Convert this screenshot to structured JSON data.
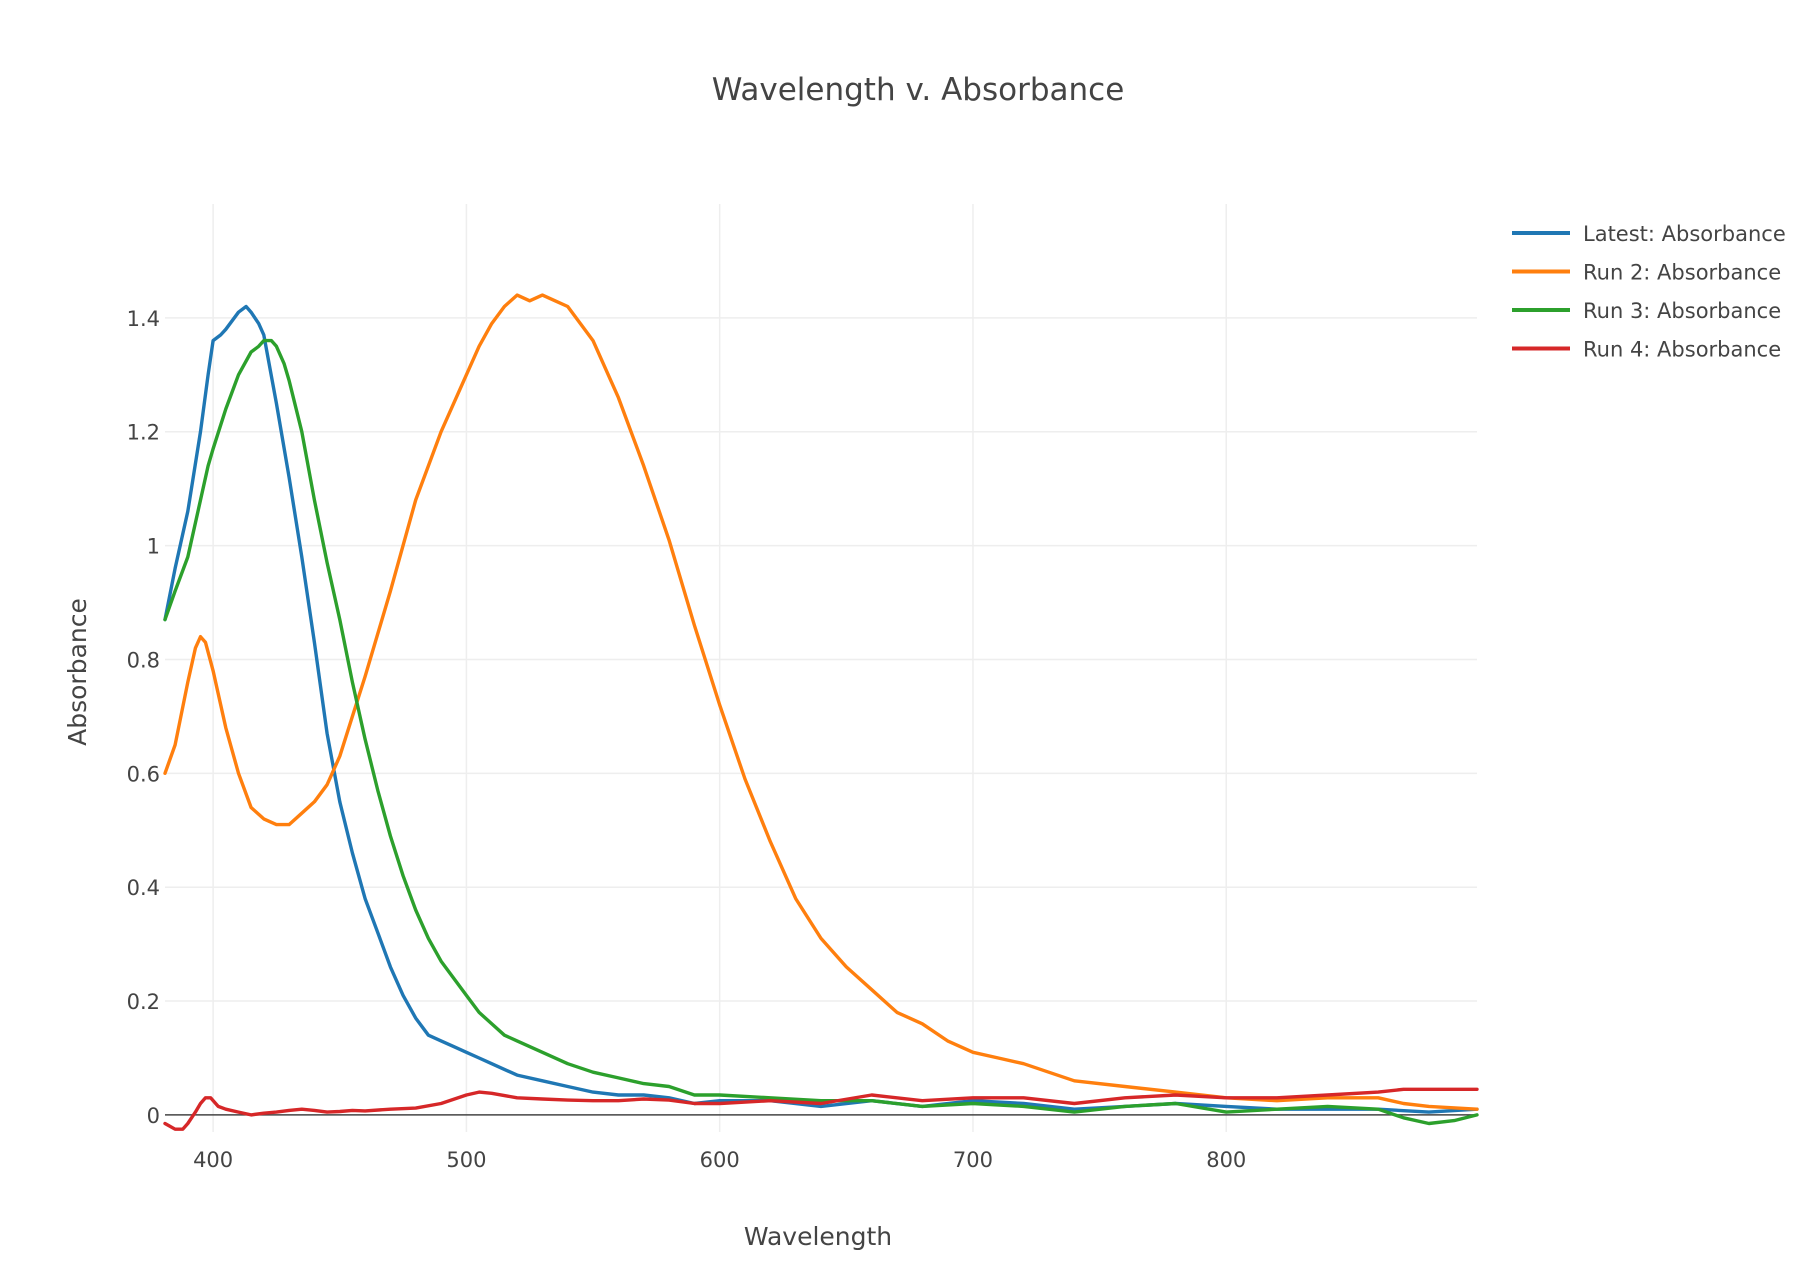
{
  "chart_data": {
    "type": "line",
    "title": "Wavelength v. Absorbance",
    "xlabel": "Wavelength",
    "ylabel": "Absorbance",
    "xlim": [
      381,
      899
    ],
    "ylim": [
      -0.03,
      1.6
    ],
    "xticks": [
      400,
      500,
      600,
      700,
      800
    ],
    "xtick_labels": [
      "400",
      "500",
      "600",
      "700",
      "800"
    ],
    "yticks": [
      0,
      0.2,
      0.4,
      0.6,
      0.8,
      1,
      1.2,
      1.4
    ],
    "ytick_labels": [
      "0",
      "0.2",
      "0.4",
      "0.6",
      "0.8",
      "1",
      "1.2",
      "1.4"
    ],
    "grid": true,
    "legend_position": "top-right",
    "series": [
      {
        "name": "Latest: Absorbance",
        "color": "#1f77b4",
        "x": [
          381,
          385,
          390,
          395,
          398,
          400,
          403,
          405,
          410,
          413,
          415,
          418,
          420,
          425,
          430,
          435,
          440,
          445,
          450,
          455,
          460,
          465,
          470,
          475,
          480,
          485,
          490,
          495,
          500,
          505,
          510,
          515,
          520,
          530,
          540,
          550,
          560,
          570,
          580,
          590,
          600,
          620,
          640,
          660,
          680,
          700,
          720,
          740,
          760,
          780,
          800,
          820,
          840,
          860,
          880,
          899
        ],
        "y": [
          0.87,
          0.96,
          1.06,
          1.2,
          1.3,
          1.36,
          1.37,
          1.38,
          1.41,
          1.42,
          1.41,
          1.39,
          1.37,
          1.25,
          1.12,
          0.98,
          0.83,
          0.67,
          0.55,
          0.46,
          0.38,
          0.32,
          0.26,
          0.21,
          0.17,
          0.14,
          0.13,
          0.12,
          0.11,
          0.1,
          0.09,
          0.08,
          0.07,
          0.06,
          0.05,
          0.04,
          0.035,
          0.035,
          0.03,
          0.02,
          0.025,
          0.025,
          0.015,
          0.025,
          0.015,
          0.025,
          0.02,
          0.01,
          0.015,
          0.02,
          0.015,
          0.01,
          0.01,
          0.01,
          0.005,
          0.01
        ]
      },
      {
        "name": "Run 2: Absorbance",
        "color": "#ff7f0e",
        "x": [
          381,
          385,
          390,
          393,
          395,
          397,
          400,
          405,
          410,
          415,
          420,
          425,
          430,
          435,
          440,
          445,
          450,
          455,
          460,
          470,
          480,
          490,
          500,
          505,
          510,
          515,
          520,
          525,
          530,
          535,
          540,
          545,
          550,
          560,
          570,
          580,
          590,
          600,
          610,
          620,
          630,
          640,
          650,
          660,
          670,
          680,
          690,
          700,
          710,
          720,
          740,
          760,
          780,
          800,
          820,
          840,
          860,
          870,
          880,
          899
        ],
        "y": [
          0.6,
          0.65,
          0.76,
          0.82,
          0.84,
          0.83,
          0.78,
          0.68,
          0.6,
          0.54,
          0.52,
          0.51,
          0.51,
          0.53,
          0.55,
          0.58,
          0.63,
          0.7,
          0.77,
          0.92,
          1.08,
          1.2,
          1.3,
          1.35,
          1.39,
          1.42,
          1.44,
          1.43,
          1.44,
          1.43,
          1.42,
          1.39,
          1.36,
          1.26,
          1.14,
          1.01,
          0.86,
          0.72,
          0.59,
          0.48,
          0.38,
          0.31,
          0.26,
          0.22,
          0.18,
          0.16,
          0.13,
          0.11,
          0.1,
          0.09,
          0.06,
          0.05,
          0.04,
          0.03,
          0.025,
          0.03,
          0.03,
          0.02,
          0.015,
          0.01
        ]
      },
      {
        "name": "Run 3: Absorbance",
        "color": "#2ca02c",
        "x": [
          381,
          385,
          390,
          395,
          398,
          400,
          405,
          410,
          415,
          418,
          420,
          423,
          425,
          428,
          430,
          435,
          440,
          445,
          450,
          455,
          460,
          465,
          470,
          475,
          480,
          485,
          490,
          495,
          500,
          505,
          510,
          515,
          520,
          530,
          540,
          550,
          560,
          570,
          580,
          590,
          600,
          620,
          640,
          660,
          680,
          700,
          720,
          740,
          760,
          780,
          800,
          820,
          840,
          860,
          870,
          880,
          890,
          899
        ],
        "y": [
          0.87,
          0.92,
          0.98,
          1.08,
          1.14,
          1.17,
          1.24,
          1.3,
          1.34,
          1.35,
          1.36,
          1.36,
          1.35,
          1.32,
          1.29,
          1.2,
          1.08,
          0.97,
          0.87,
          0.76,
          0.66,
          0.57,
          0.49,
          0.42,
          0.36,
          0.31,
          0.27,
          0.24,
          0.21,
          0.18,
          0.16,
          0.14,
          0.13,
          0.11,
          0.09,
          0.075,
          0.065,
          0.055,
          0.05,
          0.035,
          0.035,
          0.03,
          0.025,
          0.025,
          0.015,
          0.02,
          0.015,
          0.005,
          0.015,
          0.02,
          0.005,
          0.01,
          0.015,
          0.01,
          -0.005,
          -0.015,
          -0.01,
          0
        ]
      },
      {
        "name": "Run 4: Absorbance",
        "color": "#d62728",
        "x": [
          381,
          385,
          388,
          390,
          393,
          395,
          397,
          399,
          402,
          405,
          410,
          415,
          420,
          425,
          430,
          435,
          440,
          445,
          450,
          455,
          460,
          470,
          480,
          490,
          500,
          505,
          510,
          520,
          530,
          540,
          550,
          560,
          570,
          580,
          590,
          600,
          620,
          640,
          660,
          680,
          700,
          720,
          740,
          760,
          780,
          800,
          820,
          840,
          860,
          870,
          880,
          890,
          899
        ],
        "y": [
          -0.015,
          -0.025,
          -0.025,
          -0.015,
          0.005,
          0.02,
          0.03,
          0.03,
          0.015,
          0.01,
          0.005,
          0,
          0.003,
          0.005,
          0.008,
          0.01,
          0.008,
          0.005,
          0.006,
          0.008,
          0.007,
          0.01,
          0.012,
          0.02,
          0.035,
          0.04,
          0.038,
          0.03,
          0.028,
          0.026,
          0.025,
          0.025,
          0.028,
          0.026,
          0.02,
          0.02,
          0.025,
          0.02,
          0.035,
          0.025,
          0.03,
          0.03,
          0.02,
          0.03,
          0.035,
          0.03,
          0.03,
          0.035,
          0.04,
          0.045,
          0.045,
          0.045,
          0.045
        ]
      }
    ]
  }
}
